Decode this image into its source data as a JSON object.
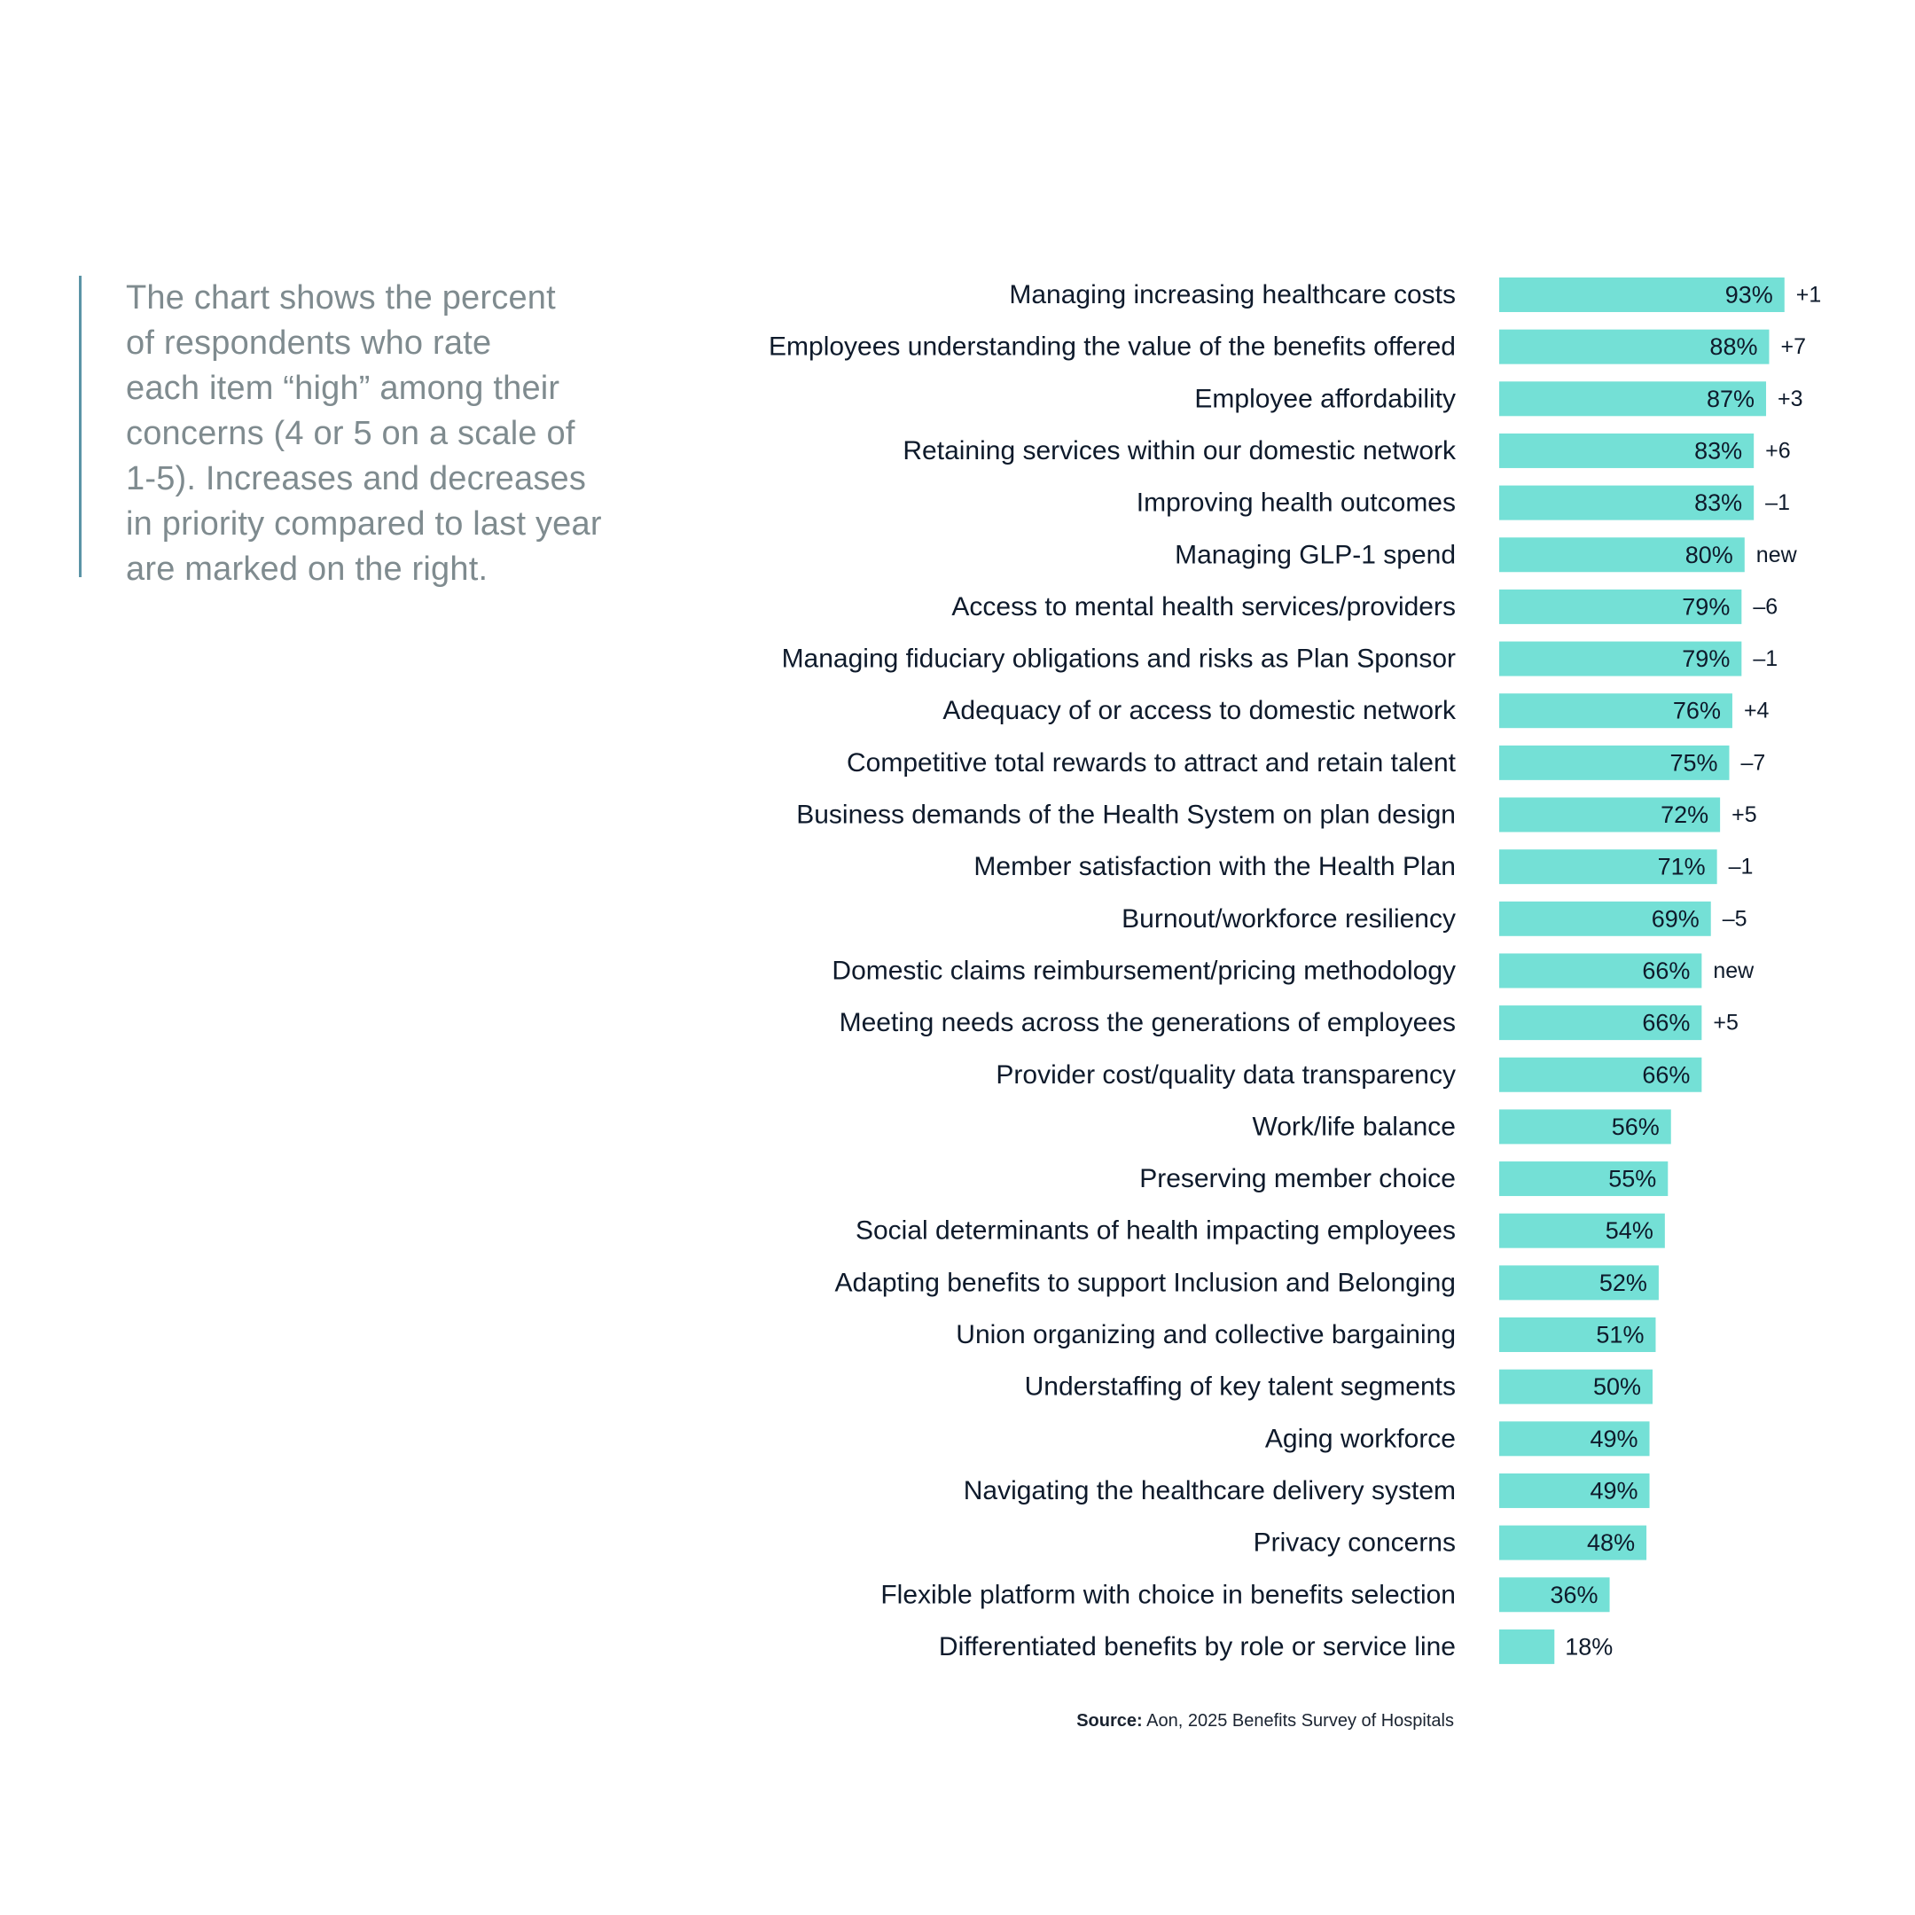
{
  "description": {
    "lines": [
      "The chart shows the percent",
      "of respondents who rate",
      "each item “high” among their",
      "concerns (4 or 5 on a scale of",
      "1-5). Increases and decreases",
      "in priority compared to last year",
      "are marked on the right."
    ]
  },
  "chart_data": {
    "type": "bar",
    "orientation": "horizontal",
    "categories": [
      "Managing increasing healthcare costs",
      "Employees understanding the value of the benefits offered",
      "Employee affordability",
      "Retaining services within our domestic network",
      "Improving health outcomes",
      "Managing GLP-1 spend",
      "Access to mental health services/providers",
      "Managing fiduciary obligations and risks as Plan Sponsor",
      "Adequacy of or access to domestic network",
      "Competitive total rewards to attract and retain talent",
      "Business demands of the Health System on plan design",
      "Member satisfaction with the Health Plan",
      "Burnout/workforce resiliency",
      "Domestic claims reimbursement/pricing methodology",
      "Meeting needs across the generations of employees",
      "Provider cost/quality data transparency",
      "Work/life balance",
      "Preserving member choice",
      "Social determinants of health impacting employees",
      "Adapting benefits to support Inclusion and Belonging",
      "Union organizing and collective bargaining",
      "Understaffing of key talent segments",
      "Aging workforce",
      "Navigating the healthcare delivery system",
      "Privacy concerns",
      "Flexible platform with choice in benefits selection",
      "Differentiated benefits by role or service line"
    ],
    "values": [
      93,
      88,
      87,
      83,
      83,
      80,
      79,
      79,
      76,
      75,
      72,
      71,
      69,
      66,
      66,
      66,
      56,
      55,
      54,
      52,
      51,
      50,
      49,
      49,
      48,
      36,
      18
    ],
    "value_labels": [
      "93%",
      "88%",
      "87%",
      "83%",
      "83%",
      "80%",
      "79%",
      "79%",
      "76%",
      "75%",
      "72%",
      "71%",
      "69%",
      "66%",
      "66%",
      "66%",
      "56%",
      "55%",
      "54%",
      "52%",
      "51%",
      "50%",
      "49%",
      "49%",
      "48%",
      "36%",
      "18%"
    ],
    "changes": [
      "+1",
      "+7",
      "+3",
      "+6",
      "–1",
      "new",
      "–6",
      "–1",
      "+4",
      "–7",
      "+5",
      "–1",
      "–5",
      "new",
      "+5",
      "",
      "",
      "",
      "",
      "",
      "",
      "",
      "",
      "",
      "",
      "",
      ""
    ],
    "xlim": [
      0,
      100
    ],
    "bar_color": "#74e0d6",
    "label_color": "#0e1a2b",
    "grid": false
  },
  "source": {
    "label": "Source:",
    "text": " Aon, 2025 Benefits Survey of Hospitals"
  }
}
